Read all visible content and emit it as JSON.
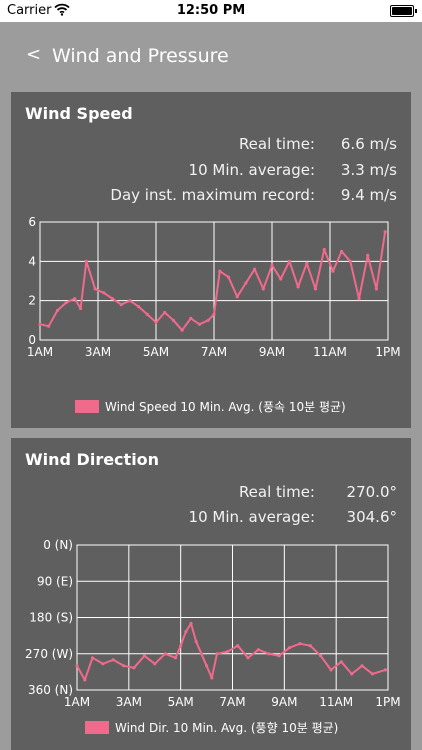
{
  "status_bar": {
    "carrier": "Carrier",
    "time": "12:50 PM"
  },
  "nav": {
    "back_label": "<",
    "title": "Wind and Pressure"
  },
  "colors": {
    "series": "#f06a8c",
    "card": "#5f5f5f",
    "background": "#9c9c9c"
  },
  "wind_speed": {
    "title": "Wind Speed",
    "stats": [
      {
        "label": "Real time:",
        "value": "6.6 m/s"
      },
      {
        "label": "10 Min. average:",
        "value": "3.3 m/s"
      },
      {
        "label": "Day inst. maximum record:",
        "value": "9.4 m/s"
      }
    ],
    "legend": "Wind Speed 10 Min. Avg. (풍속 10분 평균)"
  },
  "wind_direction": {
    "title": "Wind Direction",
    "stats": [
      {
        "label": "Real time:",
        "value": "270.0°"
      },
      {
        "label": "10 Min. average:",
        "value": "304.6°"
      }
    ],
    "legend": "Wind Dir. 10 Min. Avg. (풍향 10분 평균)"
  },
  "chart_data": [
    {
      "type": "line",
      "x_tick_labels": [
        "1AM",
        "3AM",
        "5AM",
        "7AM",
        "9AM",
        "11AM",
        "1PM"
      ],
      "y_tick_labels": [
        "0",
        "2",
        "4",
        "6"
      ],
      "ylim": [
        0,
        6
      ],
      "xlim": [
        1,
        13
      ],
      "grid": true,
      "legend_position": "bottom",
      "series": [
        {
          "name": "Wind Speed 10 Min. Avg. (풍속 10분 평균)",
          "x": [
            1.0,
            1.3,
            1.6,
            1.9,
            2.2,
            2.4,
            2.6,
            2.9,
            3.2,
            3.5,
            3.8,
            4.1,
            4.4,
            4.7,
            5.0,
            5.3,
            5.6,
            5.9,
            6.2,
            6.5,
            6.8,
            7.0,
            7.2,
            7.5,
            7.8,
            8.1,
            8.4,
            8.7,
            9.0,
            9.3,
            9.6,
            9.9,
            10.2,
            10.5,
            10.8,
            11.1,
            11.4,
            11.7,
            12.0,
            12.3,
            12.6,
            12.9
          ],
          "y": [
            0.8,
            0.7,
            1.5,
            1.9,
            2.1,
            1.6,
            4.0,
            2.6,
            2.4,
            2.1,
            1.8,
            2.0,
            1.7,
            1.3,
            0.9,
            1.4,
            1.0,
            0.5,
            1.1,
            0.8,
            1.0,
            1.3,
            3.5,
            3.2,
            2.2,
            2.9,
            3.6,
            2.6,
            3.8,
            3.1,
            4.0,
            2.7,
            3.9,
            2.6,
            4.6,
            3.5,
            4.5,
            4.0,
            2.1,
            4.3,
            2.6,
            5.5
          ]
        }
      ]
    },
    {
      "type": "line",
      "x_tick_labels": [
        "1AM",
        "3AM",
        "5AM",
        "7AM",
        "9AM",
        "11AM",
        "1PM"
      ],
      "y_tick_labels": [
        "0 (N)",
        "90 (E)",
        "180 (S)",
        "270 (W)",
        "360 (N)"
      ],
      "ylim": [
        0,
        360
      ],
      "y_inverted": true,
      "xlim": [
        1,
        13
      ],
      "grid": true,
      "legend_position": "bottom",
      "series": [
        {
          "name": "Wind Dir. 10 Min. Avg. (풍향 10분 평균)",
          "x": [
            1.0,
            1.3,
            1.6,
            2.0,
            2.4,
            2.8,
            3.2,
            3.6,
            4.0,
            4.4,
            4.8,
            5.0,
            5.2,
            5.4,
            5.6,
            5.8,
            6.0,
            6.2,
            6.4,
            6.8,
            7.2,
            7.6,
            8.0,
            8.4,
            8.8,
            9.2,
            9.6,
            10.0,
            10.4,
            10.8,
            11.2,
            11.6,
            12.0,
            12.4,
            12.9
          ],
          "y": [
            300,
            335,
            280,
            295,
            285,
            300,
            305,
            275,
            295,
            270,
            280,
            250,
            215,
            195,
            240,
            270,
            300,
            330,
            270,
            265,
            250,
            280,
            260,
            270,
            275,
            255,
            245,
            250,
            275,
            310,
            290,
            320,
            300,
            320,
            310
          ]
        }
      ]
    }
  ]
}
